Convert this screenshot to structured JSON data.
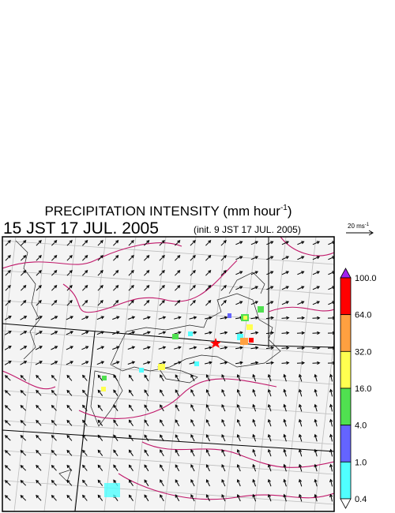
{
  "header": {
    "title": "PRECIPITATION INTENSITY (mm hour",
    "title_superscript": "-1",
    "title_suffix": ")",
    "valid_time": "15 JST 17 JUL. 2005",
    "init_time": "(init. 9 JST 17 JUL. 2005)"
  },
  "wind_scale": {
    "label": "20 ms",
    "label_superscript": "-1"
  },
  "colorbar": {
    "over_color": "#a020f0",
    "under_color": "#ffffff",
    "levels": [
      {
        "label": "100.0",
        "color": "#ff0000"
      },
      {
        "label": "64.0",
        "color": "#ffa040"
      },
      {
        "label": "32.0",
        "color": "#ffff50"
      },
      {
        "label": "16.0",
        "color": "#50e050"
      },
      {
        "label": "4.0",
        "color": "#6464ff"
      },
      {
        "label": "1.0",
        "color": "#50ffff"
      },
      {
        "label": "0.4",
        "color": null
      }
    ]
  }
}
